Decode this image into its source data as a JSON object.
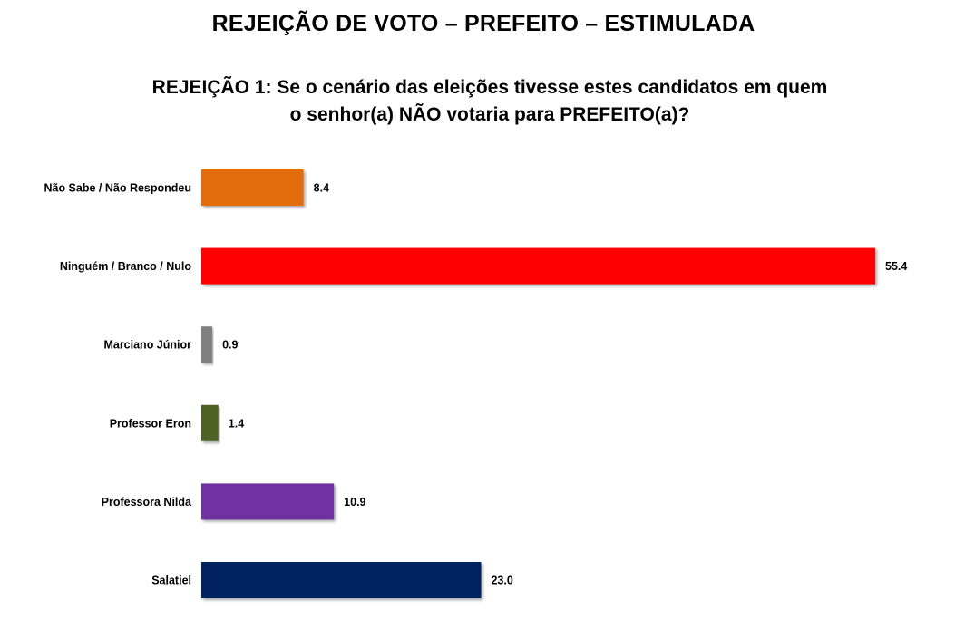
{
  "title": "REJEIÇÃO DE VOTO – PREFEITO – ESTIMULADA",
  "subtitle": {
    "line1": "REJEIÇÃO 1: Se o cenário das eleições tivesse estes candidatos em quem",
    "line2": "o senhor(a) NÃO votaria para PREFEITO(a)?"
  },
  "chart_data": {
    "type": "bar",
    "orientation": "horizontal",
    "categories": [
      "Não Sabe / Não Respondeu",
      "Ninguém / Branco / Nulo",
      "Marciano Júnior",
      "Professor Eron",
      "Professora Nilda",
      "Salatiel"
    ],
    "values": [
      8.4,
      55.4,
      0.9,
      1.4,
      10.9,
      23.0
    ],
    "value_labels": [
      "8.4",
      "55.4",
      "0.9",
      "1.4",
      "10.9",
      "23.0"
    ],
    "colors": [
      "#E36C09",
      "#FF0000",
      "#808080",
      "#4F6228",
      "#7030A0",
      "#002060"
    ],
    "xlim": [
      0,
      55.4
    ],
    "grid": false,
    "legend": "none"
  }
}
